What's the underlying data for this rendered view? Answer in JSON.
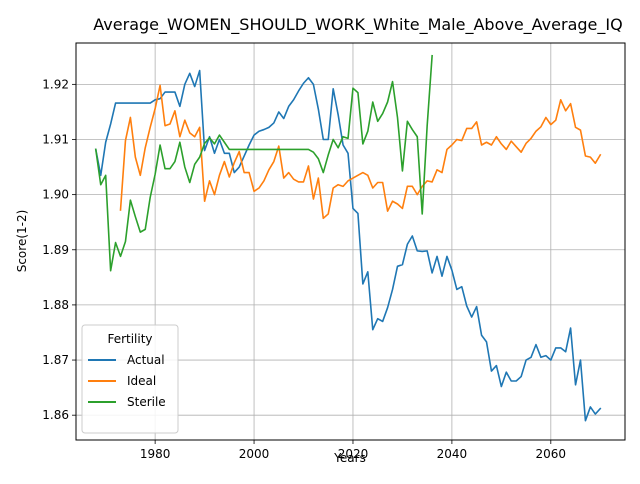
{
  "chart_data": {
    "type": "line",
    "title": "Average_WOMEN_SHOULD_WORK_White_Male_Above_Average_IQ",
    "xlabel": "Years",
    "ylabel": "Score(1-2)",
    "xlim": [
      1964,
      2075
    ],
    "ylim": [
      1.8555,
      1.9275
    ],
    "xticks": [
      1980,
      2000,
      2020,
      2040,
      2060
    ],
    "yticks": [
      1.86,
      1.87,
      1.88,
      1.89,
      1.9,
      1.91,
      1.92
    ],
    "ytick_labels": [
      "1.86",
      "1.87",
      "1.88",
      "1.89",
      "1.90",
      "1.91",
      "1.92"
    ],
    "grid": true,
    "legend": {
      "title": "Fertility",
      "placement": "lower-left"
    },
    "series": [
      {
        "name": "Actual",
        "color": "#1f77b4",
        "x": [
          1968,
          1969,
          1970,
          1971,
          1972,
          1973,
          1974,
          1975,
          1976,
          1977,
          1978,
          1979,
          1980,
          1981,
          1982,
          1983,
          1984,
          1985,
          1986,
          1987,
          1988,
          1989,
          1990,
          1991,
          1992,
          1993,
          1994,
          1995,
          1996,
          1997,
          1998,
          1999,
          2000,
          2001,
          2002,
          2003,
          2004,
          2005,
          2006,
          2007,
          2008,
          2009,
          2010,
          2011,
          2012,
          2013,
          2014,
          2015,
          2016,
          2017,
          2018,
          2019,
          2020,
          2021,
          2022,
          2023,
          2024,
          2025,
          2026,
          2027,
          2028,
          2029,
          2030,
          2031,
          2032,
          2033,
          2034,
          2035,
          2036,
          2037,
          2038,
          2039,
          2040,
          2041,
          2042,
          2043,
          2044,
          2045,
          2046,
          2047,
          2048,
          2049,
          2050,
          2051,
          2052,
          2053,
          2054,
          2055,
          2056,
          2057,
          2058,
          2059,
          2060,
          2061,
          2062,
          2063,
          2064,
          2065,
          2066,
          2067,
          2068,
          2069,
          2070
        ],
        "y": [
          1.9082,
          1.9035,
          1.9095,
          1.9128,
          1.9166,
          1.9166,
          1.9166,
          1.9166,
          1.9166,
          1.9166,
          1.9166,
          1.9166,
          1.9172,
          1.9174,
          1.9186,
          1.9186,
          1.9186,
          1.916,
          1.92,
          1.922,
          1.9196,
          1.9225,
          1.908,
          1.9105,
          1.9075,
          1.91,
          1.9075,
          1.9075,
          1.904,
          1.905,
          1.907,
          1.909,
          1.9108,
          1.9115,
          1.9118,
          1.9122,
          1.913,
          1.915,
          1.9138,
          1.916,
          1.9172,
          1.9188,
          1.9202,
          1.9212,
          1.92,
          1.9155,
          1.91,
          1.91,
          1.9192,
          1.9145,
          1.909,
          1.9075,
          1.8975,
          1.8966,
          1.8838,
          1.886,
          1.8755,
          1.8775,
          1.877,
          1.8795,
          1.8828,
          1.887,
          1.8873,
          1.891,
          1.8925,
          1.8898,
          1.8897,
          1.8898,
          1.8858,
          1.8888,
          1.8852,
          1.8888,
          1.8863,
          1.8828,
          1.8833,
          1.8798,
          1.8778,
          1.8797,
          1.8745,
          1.8733,
          1.868,
          1.869,
          1.8652,
          1.8678,
          1.8662,
          1.8662,
          1.867,
          1.87,
          1.8705,
          1.8728,
          1.8705,
          1.8708,
          1.87,
          1.8722,
          1.8722,
          1.8715,
          1.8758,
          1.8655,
          1.87,
          1.859,
          1.8615,
          1.8602,
          1.8612
        ]
      },
      {
        "name": "Ideal",
        "color": "#ff7f0e",
        "x": [
          1973,
          1974,
          1975,
          1976,
          1977,
          1978,
          1979,
          1980,
          1981,
          1982,
          1983,
          1984,
          1985,
          1986,
          1987,
          1988,
          1989,
          1990,
          1991,
          1992,
          1993,
          1994,
          1995,
          1996,
          1997,
          1998,
          1999,
          2000,
          2001,
          2002,
          2003,
          2004,
          2005,
          2006,
          2007,
          2008,
          2009,
          2010,
          2011,
          2012,
          2013,
          2014,
          2015,
          2016,
          2017,
          2018,
          2019,
          2020,
          2021,
          2022,
          2023,
          2024,
          2025,
          2026,
          2027,
          2028,
          2029,
          2030,
          2031,
          2032,
          2033,
          2034,
          2035,
          2036,
          2037,
          2038,
          2039,
          2040,
          2041,
          2042,
          2043,
          2044,
          2045,
          2046,
          2047,
          2048,
          2049,
          2050,
          2051,
          2052,
          2053,
          2054,
          2055,
          2056,
          2057,
          2058,
          2059,
          2060,
          2061,
          2062,
          2063,
          2064,
          2065,
          2066,
          2067,
          2068,
          2069,
          2070
        ],
        "y": [
          1.8972,
          1.9098,
          1.914,
          1.9068,
          1.9035,
          1.9085,
          1.9122,
          1.9156,
          1.9198,
          1.9125,
          1.9128,
          1.9152,
          1.9105,
          1.9135,
          1.9112,
          1.9105,
          1.9122,
          1.8988,
          1.9025,
          1.9,
          1.9035,
          1.906,
          1.9032,
          1.9058,
          1.9078,
          1.904,
          1.904,
          1.9006,
          1.9012,
          1.9025,
          1.9045,
          1.906,
          1.9088,
          1.903,
          1.904,
          1.9028,
          1.9023,
          1.9023,
          1.9052,
          1.8992,
          1.903,
          1.8957,
          1.8965,
          1.9012,
          1.9018,
          1.9015,
          1.9025,
          1.903,
          1.9035,
          1.904,
          1.9035,
          1.9012,
          1.9022,
          1.9022,
          1.897,
          1.8988,
          1.8983,
          1.8975,
          1.9015,
          1.9015,
          1.9,
          1.9015,
          1.9025,
          1.9023,
          1.9045,
          1.904,
          1.9082,
          1.909,
          1.91,
          1.9098,
          1.912,
          1.912,
          1.9132,
          1.909,
          1.9095,
          1.909,
          1.9105,
          1.9092,
          1.9082,
          1.9097,
          1.9087,
          1.9077,
          1.9093,
          1.9102,
          1.9115,
          1.9123,
          1.914,
          1.9127,
          1.9135,
          1.9172,
          1.9152,
          1.9165,
          1.9122,
          1.9117,
          1.907,
          1.9068,
          1.9057,
          1.9072
        ]
      },
      {
        "name": "Sterile",
        "color": "#2ca02c",
        "x": [
          1968,
          1969,
          1970,
          1971,
          1972,
          1973,
          1974,
          1975,
          1976,
          1977,
          1978,
          1979,
          1980,
          1981,
          1982,
          1983,
          1984,
          1985,
          1986,
          1987,
          1988,
          1989,
          1990,
          1991,
          1992,
          1993,
          1994,
          1995,
          1996,
          1997,
          1998,
          1999,
          2000,
          2001,
          2002,
          2003,
          2004,
          2005,
          2006,
          2007,
          2008,
          2009,
          2010,
          2011,
          2012,
          2013,
          2014,
          2015,
          2016,
          2017,
          2018,
          2019,
          2020,
          2021,
          2022,
          2023,
          2024,
          2025,
          2026,
          2027,
          2028,
          2029,
          2030,
          2031,
          2032,
          2033,
          2034,
          2035,
          2036
        ],
        "y": [
          1.9082,
          1.9018,
          1.9035,
          1.8862,
          1.8913,
          1.8888,
          1.8915,
          1.899,
          1.896,
          1.8932,
          1.8937,
          1.8995,
          1.9037,
          1.909,
          1.9047,
          1.9047,
          1.906,
          1.9095,
          1.905,
          1.9022,
          1.9055,
          1.9068,
          1.9093,
          1.9103,
          1.9092,
          1.9108,
          1.9095,
          1.9082,
          1.9082,
          1.9082,
          1.9082,
          1.9082,
          1.9082,
          1.9082,
          1.9082,
          1.9082,
          1.9082,
          1.9082,
          1.9082,
          1.9082,
          1.9082,
          1.9082,
          1.9082,
          1.9082,
          1.9077,
          1.9065,
          1.904,
          1.9072,
          1.91,
          1.9085,
          1.9105,
          1.9102,
          1.9193,
          1.9185,
          1.9092,
          1.9115,
          1.9168,
          1.9133,
          1.9147,
          1.9168,
          1.9205,
          1.914,
          1.9043,
          1.9133,
          1.9118,
          1.9105,
          1.8965,
          1.9125,
          1.9252
        ]
      }
    ]
  }
}
